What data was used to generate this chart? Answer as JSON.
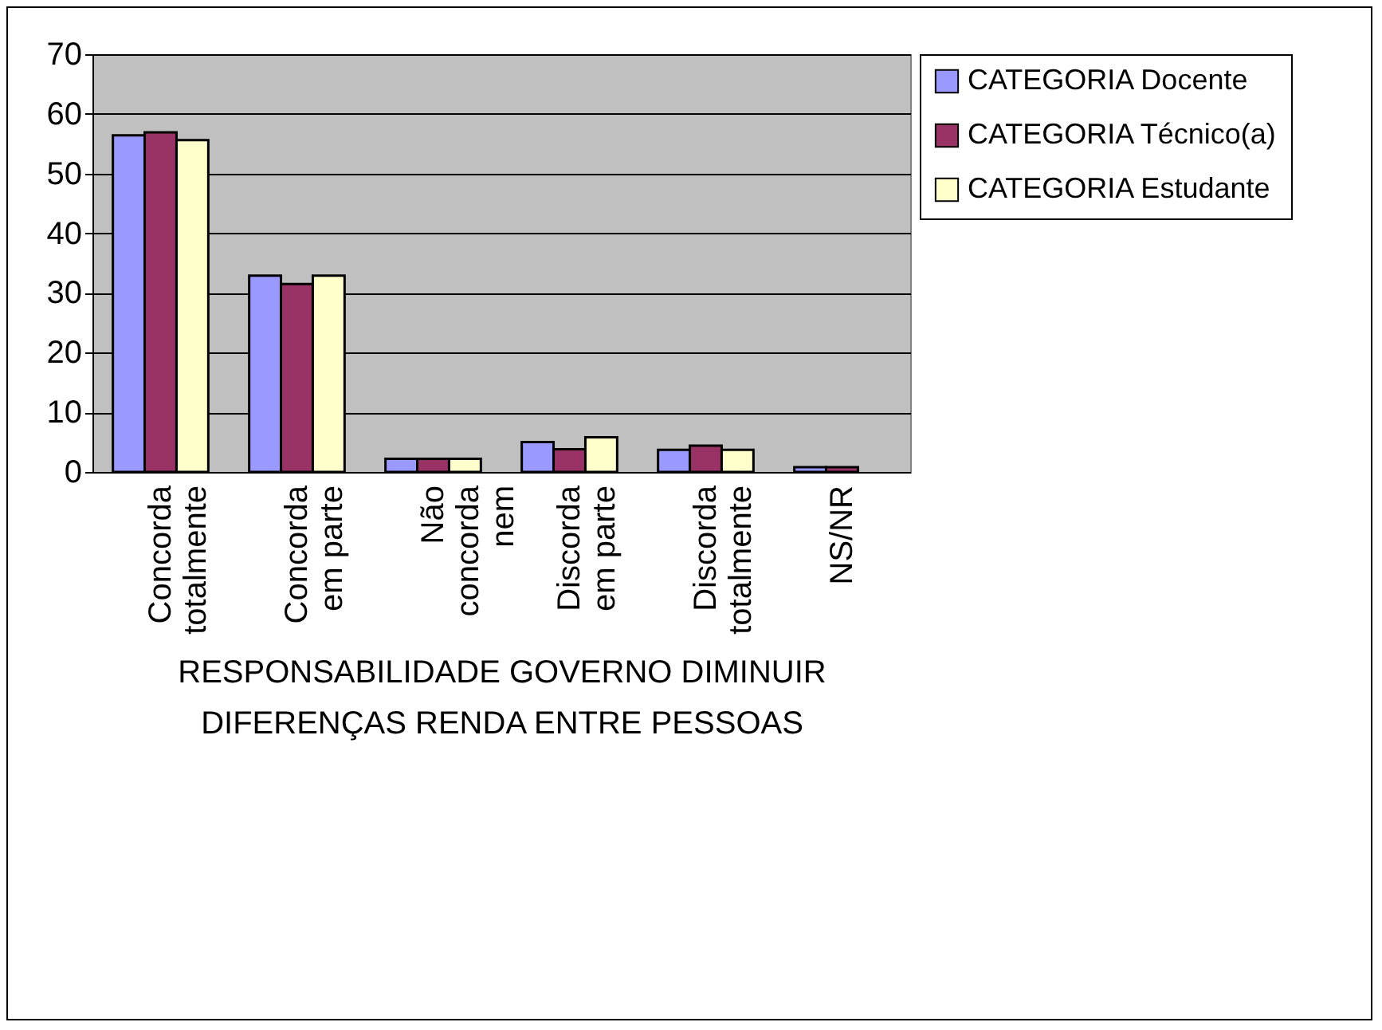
{
  "chart_data": {
    "type": "bar",
    "xlabel": "RESPONSABILIDADE GOVERNO DIMINUIR DIFERENÇAS RENDA ENTRE PESSOAS",
    "categories": [
      "Concorda totalmente",
      "Concorda em parte",
      "Não concorda nem",
      "Discorda em parte",
      "Discorda totalmente",
      "NS/NR"
    ],
    "series": [
      {
        "name": "CATEGORIA Docente",
        "color": "#9999ff",
        "values": [
          56.4,
          32.9,
          2.2,
          5.0,
          3.7,
          0.8
        ]
      },
      {
        "name": "CATEGORIA Técnico(a)",
        "color": "#993366",
        "values": [
          56.9,
          31.5,
          2.2,
          3.8,
          4.4,
          0.8
        ]
      },
      {
        "name": "CATEGORIA Estudante",
        "color": "#ffffcc",
        "values": [
          55.6,
          32.9,
          2.2,
          5.8,
          3.7,
          null
        ]
      }
    ],
    "ylim": [
      0,
      70
    ],
    "yticks": [
      0,
      10,
      20,
      30,
      40,
      50,
      60,
      70
    ],
    "grid": "y",
    "legend": "right"
  }
}
